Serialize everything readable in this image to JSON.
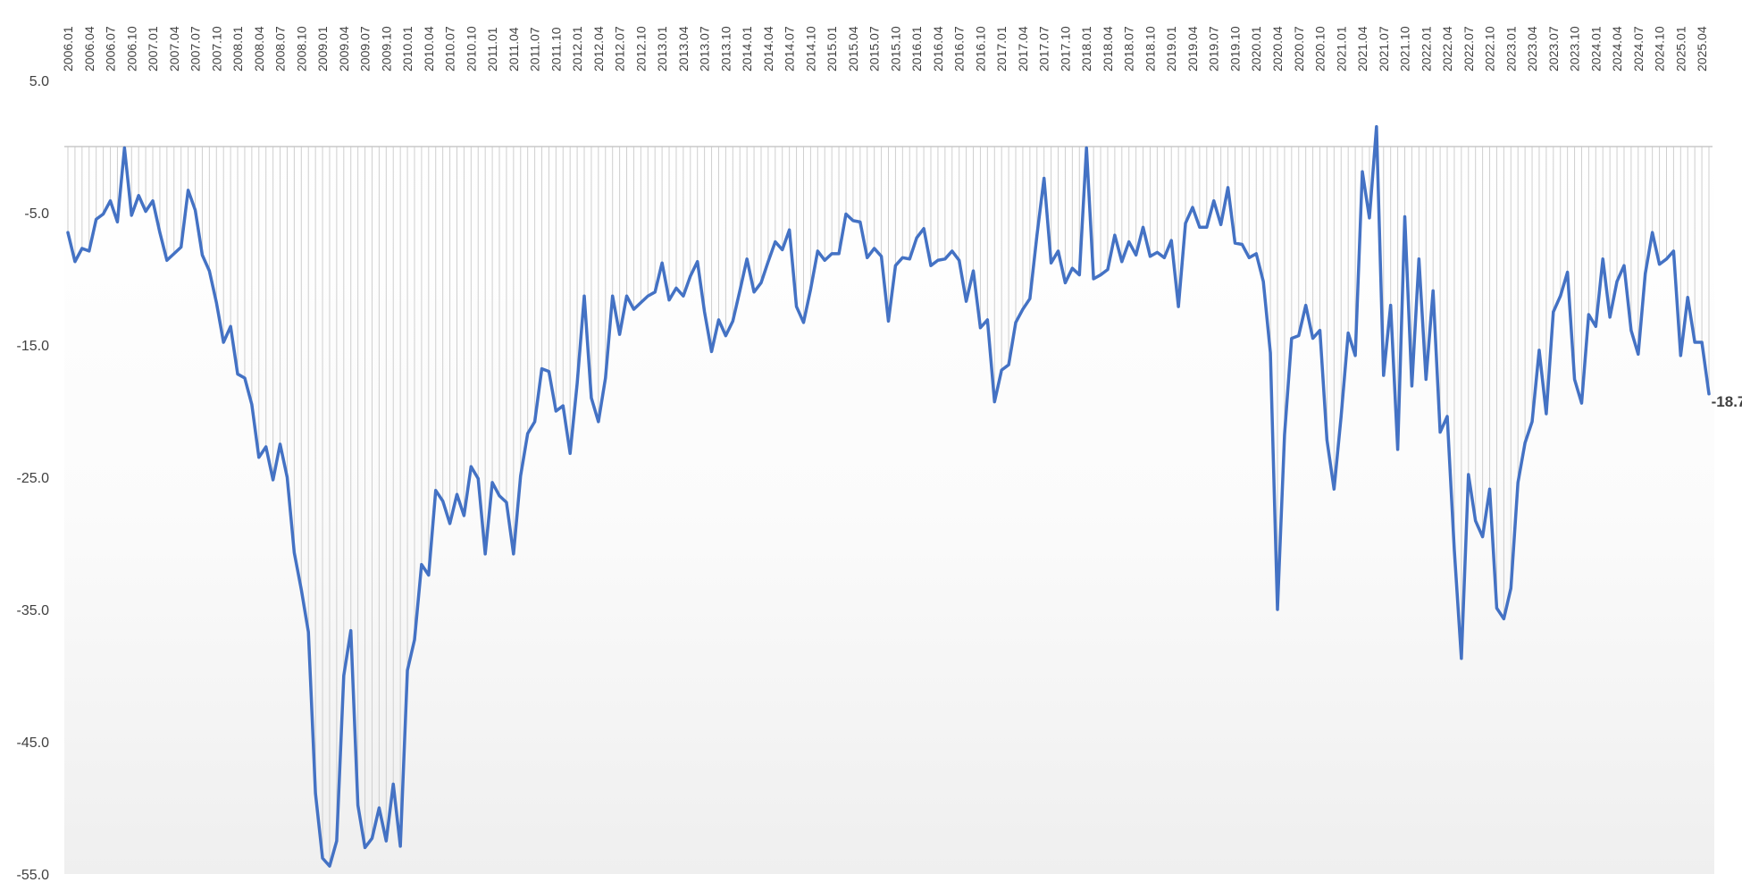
{
  "chart_data": {
    "type": "line",
    "title": "",
    "xlabel": "",
    "ylabel": "",
    "start": "2006.01",
    "y_ticks": [
      "5.0",
      "-5.0",
      "-15.0",
      "-25.0",
      "-35.0",
      "-45.0",
      "-55.0"
    ],
    "ylim": [
      -55,
      5
    ],
    "x_tick_labels": [
      "2006.01",
      "2006.04",
      "2006.07",
      "2006.10",
      "2007.01",
      "2007.04",
      "2007.07",
      "2007.10",
      "2008.01",
      "2008.04",
      "2008.07",
      "2008.10",
      "2009.01",
      "2009.04",
      "2009.07",
      "2009.10",
      "2010.01",
      "2010.04",
      "2010.07",
      "2010.10",
      "2011.01",
      "2011.04",
      "2011.07",
      "2011.10",
      "2012.01",
      "2012.04",
      "2012.07",
      "2012.10",
      "2013.01",
      "2013.04",
      "2013.07",
      "2013.10",
      "2014.01",
      "2014.04",
      "2014.07",
      "2014.10",
      "2015.01",
      "2015.04",
      "2015.07",
      "2015.10",
      "2016.01",
      "2016.04",
      "2016.07",
      "2016.10",
      "2017.01",
      "2017.04",
      "2017.07",
      "2017.10",
      "2018.01",
      "2018.04",
      "2018.07",
      "2018.10",
      "2019.01",
      "2019.04",
      "2019.07",
      "2019.10",
      "2020.01",
      "2020.04",
      "2020.07",
      "2020.10",
      "2021.01",
      "2021.04",
      "2021.07",
      "2021.10",
      "2022.01",
      "2022.04",
      "2022.07",
      "2022.10",
      "2023.01",
      "2023.04",
      "2023.07",
      "2023.10",
      "2024.01",
      "2024.04",
      "2024.07",
      "2024.10",
      "2025.01",
      "2025.04"
    ],
    "grid": "vertical drop lines per month",
    "series": [
      {
        "name": "",
        "color": "#4472C4",
        "values": [
          -6.5,
          -8.7,
          -7.7,
          -7.9,
          -5.5,
          -5.1,
          -4.1,
          -5.7,
          -0.1,
          -5.2,
          -3.7,
          -4.9,
          -4.1,
          -6.5,
          -8.6,
          -8.1,
          -7.6,
          -3.3,
          -4.8,
          -8.2,
          -9.4,
          -11.8,
          -14.8,
          -13.6,
          -17.2,
          -17.5,
          -19.5,
          -23.5,
          -22.7,
          -25.2,
          -22.5,
          -25.0,
          -30.7,
          -33.5,
          -36.7,
          -48.9,
          -53.8,
          -54.4,
          -52.5,
          -40.0,
          -36.6,
          -49.8,
          -53.0,
          -52.3,
          -50.0,
          -52.5,
          -48.2,
          -52.9,
          -39.6,
          -37.3,
          -31.6,
          -32.4,
          -26.0,
          -26.8,
          -28.5,
          -26.3,
          -27.9,
          -24.2,
          -25.1,
          -30.8,
          -25.4,
          -26.4,
          -26.9,
          -30.8,
          -24.9,
          -21.7,
          -20.8,
          -16.8,
          -17.0,
          -20.0,
          -19.6,
          -23.2,
          -17.9,
          -11.3,
          -19.0,
          -20.8,
          -17.5,
          -11.3,
          -14.2,
          -11.3,
          -12.3,
          -11.8,
          -11.3,
          -11.0,
          -8.8,
          -11.6,
          -10.7,
          -11.3,
          -9.8,
          -8.7,
          -12.5,
          -15.5,
          -13.1,
          -14.3,
          -13.2,
          -10.9,
          -8.5,
          -11.0,
          -10.3,
          -8.7,
          -7.2,
          -7.8,
          -6.3,
          -12.1,
          -13.3,
          -10.8,
          -7.9,
          -8.6,
          -8.1,
          -8.1,
          -5.1,
          -5.6,
          -5.7,
          -8.4,
          -7.7,
          -8.3,
          -13.2,
          -9.0,
          -8.4,
          -8.5,
          -6.9,
          -6.2,
          -9.0,
          -8.6,
          -8.5,
          -7.9,
          -8.6,
          -11.7,
          -9.4,
          -13.7,
          -13.1,
          -19.3,
          -16.9,
          -16.5,
          -13.3,
          -12.3,
          -11.5,
          -6.7,
          -2.4,
          -8.8,
          -7.9,
          -10.3,
          -9.2,
          -9.7,
          -0.1,
          -10.0,
          -9.7,
          -9.3,
          -6.7,
          -8.7,
          -7.2,
          -8.2,
          -6.1,
          -8.3,
          -8.0,
          -8.4,
          -7.1,
          -12.1,
          -5.8,
          -4.6,
          -6.1,
          -6.1,
          -4.1,
          -5.9,
          -3.1,
          -7.3,
          -7.4,
          -8.4,
          -8.1,
          -10.2,
          -15.6,
          -35.0,
          -21.8,
          -14.5,
          -14.3,
          -12.0,
          -14.5,
          -13.9,
          -22.2,
          -25.9,
          -20.4,
          -14.1,
          -15.8,
          -1.9,
          -5.4,
          1.5,
          -17.3,
          -12.0,
          -22.9,
          -5.3,
          -18.1,
          -8.5,
          -17.6,
          -10.9,
          -21.6,
          -20.4,
          -30.5,
          -38.7,
          -24.8,
          -28.3,
          -29.5,
          -25.9,
          -34.9,
          -35.7,
          -33.4,
          -25.4,
          -22.4,
          -20.8,
          -15.4,
          -20.2,
          -12.5,
          -11.3,
          -9.5,
          -17.6,
          -19.4,
          -12.7,
          -13.6,
          -8.5,
          -12.9,
          -10.2,
          -9.0,
          -13.9,
          -15.7,
          -9.6,
          -6.5,
          -8.9,
          -8.5,
          -7.9,
          -15.8,
          -11.4,
          -14.8,
          -14.8,
          -18.7
        ]
      }
    ],
    "last_value_label": "-18.7"
  }
}
